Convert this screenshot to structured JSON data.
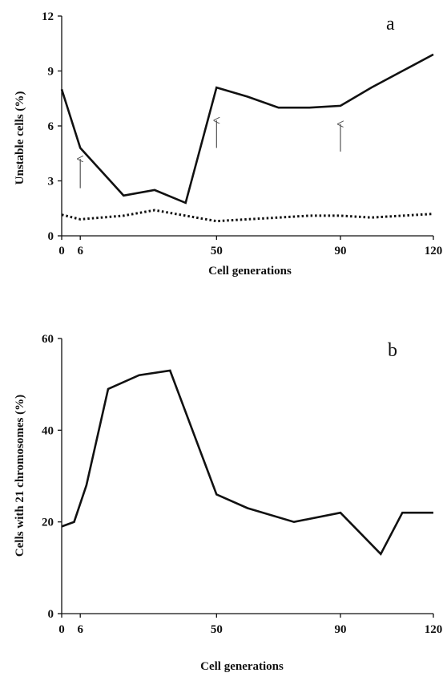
{
  "chart_data": [
    {
      "type": "line",
      "panel_label": "a",
      "xlabel": "Cell generations",
      "ylabel": "Unstable cells (%)",
      "xlim": [
        0,
        120
      ],
      "ylim": [
        0,
        12
      ],
      "x_ticks": [
        0,
        6,
        50,
        90,
        120
      ],
      "y_ticks": [
        0,
        3,
        6,
        9,
        12
      ],
      "grid": false,
      "series": [
        {
          "style": "solid",
          "x": [
            0,
            6,
            20,
            30,
            40,
            50,
            60,
            70,
            80,
            90,
            100,
            110,
            120
          ],
          "y": [
            8.0,
            4.8,
            2.2,
            2.5,
            1.8,
            8.1,
            7.6,
            7.0,
            7.0,
            7.1,
            8.1,
            9.0,
            9.9
          ]
        },
        {
          "style": "dotted",
          "x": [
            0,
            6,
            20,
            30,
            40,
            50,
            60,
            70,
            80,
            90,
            100,
            110,
            120
          ],
          "y": [
            1.15,
            0.9,
            1.1,
            1.4,
            1.1,
            0.8,
            0.9,
            1.0,
            1.1,
            1.1,
            1.0,
            1.1,
            1.2
          ]
        }
      ],
      "annotations": [
        {
          "type": "arrow",
          "x": 6,
          "y_from": 2.6,
          "y_to": 4.2
        },
        {
          "type": "arrow",
          "x": 50,
          "y_from": 4.8,
          "y_to": 6.3
        },
        {
          "type": "arrow",
          "x": 90,
          "y_from": 4.6,
          "y_to": 6.1
        }
      ]
    },
    {
      "type": "line",
      "panel_label": "b",
      "xlabel": "Cell generations",
      "ylabel": "Cells with  21 chromosomes  (%)",
      "xlim": [
        0,
        120
      ],
      "ylim": [
        0,
        60
      ],
      "x_ticks": [
        0,
        6,
        50,
        90,
        120
      ],
      "y_ticks": [
        0,
        20,
        40,
        60
      ],
      "grid": false,
      "series": [
        {
          "style": "solid",
          "x": [
            0,
            4,
            8,
            15,
            25,
            35,
            50,
            60,
            75,
            90,
            103,
            110,
            120
          ],
          "y": [
            19,
            20,
            28,
            49,
            52,
            53,
            26,
            23,
            20,
            22,
            13,
            22,
            22
          ]
        }
      ]
    }
  ]
}
